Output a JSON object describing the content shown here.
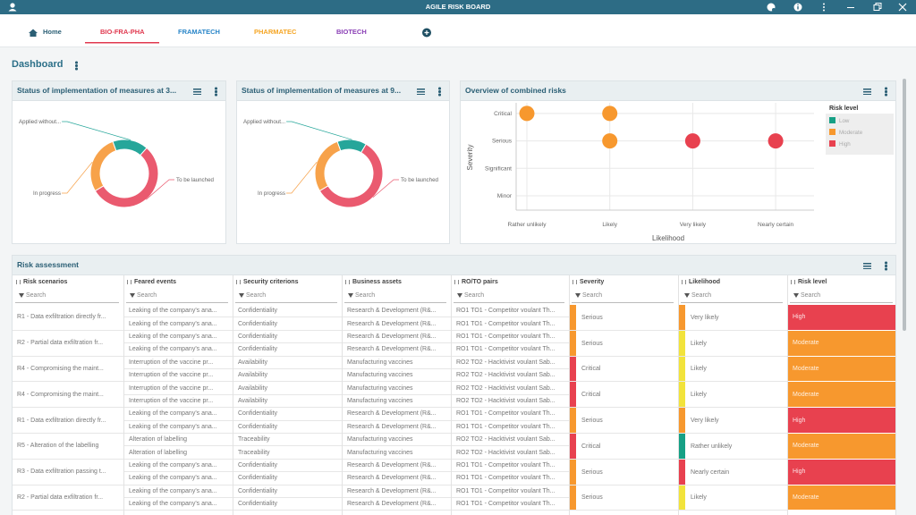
{
  "header": {
    "title": "AGILE RISK BOARD"
  },
  "tabs": [
    "Home",
    "BIO-FRA-PHA",
    "FRAMATECH",
    "PHARMATEC",
    "BIOTECH"
  ],
  "dashboard": {
    "title": "Dashboard"
  },
  "chart_data": [
    {
      "type": "pie",
      "title": "Status of implementation of measures at 3...",
      "donut": true,
      "categories": [
        "Applied without...",
        "To be launched",
        "In progress"
      ],
      "values": [
        17,
        55,
        28
      ],
      "colors": [
        "#26a69a",
        "#ea5a6f",
        "#f7a24a"
      ]
    },
    {
      "type": "pie",
      "title": "Status of implementation of measures at 9...",
      "donut": true,
      "categories": [
        "Applied without...",
        "To be launched",
        "In progress"
      ],
      "values": [
        14,
        58,
        28
      ],
      "colors": [
        "#26a69a",
        "#ea5a6f",
        "#f7a24a"
      ]
    },
    {
      "type": "scatter",
      "title": "Overview of combined risks",
      "x_label": "Likelihood",
      "y_label": "Severity",
      "x_categories": [
        "Rather unlikely",
        "Likely",
        "Very likely",
        "Nearly certain"
      ],
      "y_categories": [
        "Minor",
        "Significant",
        "Serious",
        "Critical"
      ],
      "legend_title": "Risk level",
      "legend": "right",
      "grid": true,
      "series": [
        {
          "name": "Low",
          "color": "#16a085",
          "x": [],
          "y": []
        },
        {
          "name": "Moderate",
          "color": "#f7982e",
          "x": [
            "Rather unlikely",
            "Likely",
            "Likely"
          ],
          "y": [
            "Critical",
            "Critical",
            "Serious"
          ]
        },
        {
          "name": "High",
          "color": "#e8414f",
          "x": [
            "Very likely",
            "Nearly certain"
          ],
          "y": [
            "Serious",
            "Serious"
          ]
        }
      ]
    }
  ],
  "risk_assessment": {
    "title": "Risk assessment",
    "columns": [
      "Risk scenarios",
      "Feared events",
      "Security criterions",
      "Business assets",
      "RO/TO pairs",
      "Severity",
      "Likelihood",
      "Risk level"
    ],
    "search_placeholder": "Search",
    "groups": [
      {
        "scenario": "R1 - Data exfiltration directly fr...",
        "rows": [
          [
            "Leaking of the company's ana...",
            "Confidentiality",
            "Research & Development (R&...",
            "RO1 TO1 - Competitor voulant Th..."
          ],
          [
            "Leaking of the company's ana...",
            "Confidentiality",
            "Research & Development (R&...",
            "RO1 TO1 - Competitor voulant Th..."
          ]
        ],
        "severity": {
          "label": "Serious",
          "color": "#f7982e"
        },
        "likelihood": {
          "label": "Very likely",
          "color": "#f7982e"
        },
        "risk_level": {
          "label": "High",
          "color": "#e8414f"
        }
      },
      {
        "scenario": "R2 - Partial data exfiltration fr...",
        "rows": [
          [
            "Leaking of the company's ana...",
            "Confidentiality",
            "Research & Development (R&...",
            "RO1 TO1 - Competitor voulant Th..."
          ],
          [
            "Leaking of the company's ana...",
            "Confidentiality",
            "Research & Development (R&...",
            "RO1 TO1 - Competitor voulant Th..."
          ]
        ],
        "severity": {
          "label": "Serious",
          "color": "#f7982e"
        },
        "likelihood": {
          "label": "Likely",
          "color": "#f2e33b"
        },
        "risk_level": {
          "label": "Moderate",
          "color": "#f7982e"
        }
      },
      {
        "scenario": "R4 - Compromising the maint...",
        "rows": [
          [
            "Interruption of the vaccine pr...",
            "Availability",
            "Manufacturing vaccines",
            "RO2 TO2 - Hacktivist voulant Sab..."
          ],
          [
            "Interruption of the vaccine pr...",
            "Availability",
            "Manufacturing vaccines",
            "RO2 TO2 - Hacktivist voulant Sab..."
          ]
        ],
        "severity": {
          "label": "Critical",
          "color": "#e8414f"
        },
        "likelihood": {
          "label": "Likely",
          "color": "#f2e33b"
        },
        "risk_level": {
          "label": "Moderate",
          "color": "#f7982e"
        }
      },
      {
        "scenario": "R4 - Compromising the maint...",
        "rows": [
          [
            "Interruption of the vaccine pr...",
            "Availability",
            "Manufacturing vaccines",
            "RO2 TO2 - Hacktivist voulant Sab..."
          ],
          [
            "Interruption of the vaccine pr...",
            "Availability",
            "Manufacturing vaccines",
            "RO2 TO2 - Hacktivist voulant Sab..."
          ]
        ],
        "severity": {
          "label": "Critical",
          "color": "#e8414f"
        },
        "likelihood": {
          "label": "Likely",
          "color": "#f2e33b"
        },
        "risk_level": {
          "label": "Moderate",
          "color": "#f7982e"
        }
      },
      {
        "scenario": "R1 - Data exfiltration directly fr...",
        "rows": [
          [
            "Leaking of the company's ana...",
            "Confidentiality",
            "Research & Development (R&...",
            "RO1 TO1 - Competitor voulant Th..."
          ],
          [
            "Leaking of the company's ana...",
            "Confidentiality",
            "Research & Development (R&...",
            "RO1 TO1 - Competitor voulant Th..."
          ]
        ],
        "severity": {
          "label": "Serious",
          "color": "#f7982e"
        },
        "likelihood": {
          "label": "Very likely",
          "color": "#f7982e"
        },
        "risk_level": {
          "label": "High",
          "color": "#e8414f"
        }
      },
      {
        "scenario": "R5 - Alteration of the labelling",
        "rows": [
          [
            "Alteration of labelling",
            "Traceability",
            "Manufacturing vaccines",
            "RO2 TO2 - Hacktivist voulant Sab..."
          ],
          [
            "Alteration of labelling",
            "Traceability",
            "Manufacturing vaccines",
            "RO2 TO2 - Hacktivist voulant Sab..."
          ]
        ],
        "severity": {
          "label": "Critical",
          "color": "#e8414f"
        },
        "likelihood": {
          "label": "Rather unlikely",
          "color": "#16a085"
        },
        "risk_level": {
          "label": "Moderate",
          "color": "#f7982e"
        }
      },
      {
        "scenario": "R3 - Data exfiltration passing t...",
        "rows": [
          [
            "Leaking of the company's ana...",
            "Confidentiality",
            "Research & Development (R&...",
            "RO1 TO1 - Competitor voulant Th..."
          ],
          [
            "Leaking of the company's ana...",
            "Confidentiality",
            "Research & Development (R&...",
            "RO1 TO1 - Competitor voulant Th..."
          ]
        ],
        "severity": {
          "label": "Serious",
          "color": "#f7982e"
        },
        "likelihood": {
          "label": "Nearly certain",
          "color": "#e8414f"
        },
        "risk_level": {
          "label": "High",
          "color": "#e8414f"
        }
      },
      {
        "scenario": "R2 - Partial data exfiltration fr...",
        "rows": [
          [
            "Leaking of the company's ana...",
            "Confidentiality",
            "Research & Development (R&...",
            "RO1 TO1 - Competitor voulant Th..."
          ],
          [
            "Leaking of the company's ana...",
            "Confidentiality",
            "Research & Development (R&...",
            "RO1 TO1 - Competitor voulant Th..."
          ]
        ],
        "severity": {
          "label": "Serious",
          "color": "#f7982e"
        },
        "likelihood": {
          "label": "Likely",
          "color": "#f2e33b"
        },
        "risk_level": {
          "label": "Moderate",
          "color": "#f7982e"
        }
      }
    ]
  }
}
